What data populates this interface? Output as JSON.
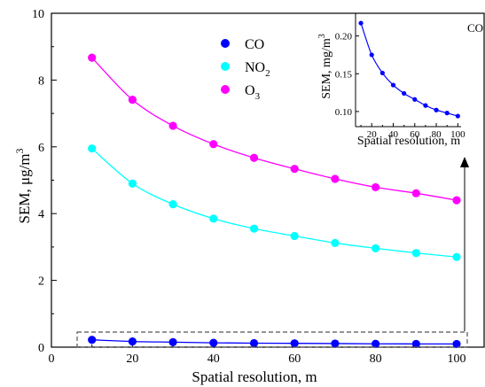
{
  "chart_data": [
    {
      "type": "scatter",
      "xlabel": "Spatial resolution, m",
      "ylabel": "SEM, μg/m",
      "ylabel_sup": "3",
      "xlim": [
        0,
        107
      ],
      "ylim": [
        0,
        10
      ],
      "xticks": [
        0,
        20,
        40,
        60,
        80,
        100
      ],
      "yticks": [
        0,
        2,
        4,
        6,
        8,
        10
      ],
      "grid": false,
      "legend_position": "top-center",
      "x": [
        10,
        20,
        30,
        40,
        50,
        60,
        70,
        80,
        90,
        100
      ],
      "series": [
        {
          "name": "CO",
          "color": "#0000ff",
          "values": [
            0.22,
            0.17,
            0.15,
            0.13,
            0.12,
            0.115,
            0.108,
            0.1,
            0.097,
            0.095
          ]
        },
        {
          "name": "NO2",
          "name_main": "NO",
          "name_sub": "2",
          "color": "#00ffff",
          "values": [
            5.95,
            4.9,
            4.28,
            3.85,
            3.55,
            3.33,
            3.12,
            2.96,
            2.82,
            2.7
          ]
        },
        {
          "name": "O3",
          "name_main": "O",
          "name_sub": "3",
          "color": "#ff00ff",
          "values": [
            8.67,
            7.41,
            6.63,
            6.08,
            5.67,
            5.34,
            5.04,
            4.79,
            4.61,
            4.4
          ]
        }
      ],
      "annotation": "dashed box marks CO data, arrow points to inset"
    },
    {
      "type": "scatter",
      "label": "CO",
      "xlabel": "Spatial resolution, m",
      "ylabel": "SEM, mg/m",
      "ylabel_sup": "3",
      "xlim": [
        5,
        103
      ],
      "ylim": [
        0.08,
        0.23
      ],
      "xticks": [
        20,
        40,
        60,
        80,
        100
      ],
      "yticks": [
        0.1,
        0.15,
        0.2
      ],
      "ytick_labels": [
        "0.10",
        "0.15",
        "0.20"
      ],
      "grid": false,
      "x": [
        10,
        20,
        30,
        40,
        50,
        60,
        70,
        80,
        90,
        100
      ],
      "series": [
        {
          "color": "#0000ff",
          "values": [
            0.217,
            0.175,
            0.151,
            0.135,
            0.124,
            0.116,
            0.108,
            0.102,
            0.098,
            0.094
          ]
        }
      ]
    }
  ]
}
